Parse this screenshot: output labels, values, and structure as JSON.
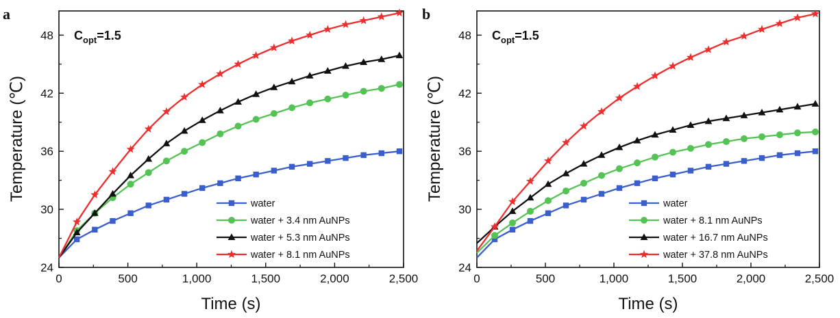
{
  "colors": {
    "water": "#3a5fcd",
    "small": "#55c255",
    "medium": "#111111",
    "large": "#ee2e2e",
    "axis": "#111111"
  },
  "chart_data": [
    {
      "type": "line",
      "panel_label": "a",
      "annotation": {
        "main": "C",
        "sub": "opt",
        "tail": "=1.5"
      },
      "xlabel": "Time (s)",
      "ylabel": "Temperature (℃)",
      "xlim": [
        0,
        2500
      ],
      "ylim": [
        24,
        50.5
      ],
      "xticks": [
        0,
        500,
        1000,
        1500,
        2000,
        2500
      ],
      "xtick_labels": [
        "0",
        "500",
        "1,000",
        "1,500",
        "2,000",
        "2,500"
      ],
      "yticks": [
        24,
        30,
        36,
        42,
        48
      ],
      "ytick_labels": [
        "24",
        "30",
        "36",
        "42",
        "48"
      ],
      "grid": false,
      "legend_position": "bottom-right",
      "x": [
        0,
        130,
        260,
        390,
        520,
        650,
        780,
        910,
        1040,
        1170,
        1300,
        1430,
        1560,
        1690,
        1820,
        1950,
        2080,
        2210,
        2340,
        2470
      ],
      "series": [
        {
          "name": "water",
          "marker": "square",
          "color_key": "water",
          "values": [
            25.0,
            26.9,
            27.9,
            28.8,
            29.6,
            30.4,
            31.0,
            31.6,
            32.2,
            32.7,
            33.2,
            33.6,
            34.0,
            34.4,
            34.7,
            35.0,
            35.3,
            35.6,
            35.8,
            36.0
          ]
        },
        {
          "name": "water + 3.4 nm AuNPs",
          "marker": "circle",
          "color_key": "small",
          "values": [
            25.0,
            27.8,
            29.6,
            31.2,
            32.6,
            33.8,
            35.0,
            36.0,
            36.9,
            37.8,
            38.6,
            39.3,
            39.9,
            40.5,
            41.0,
            41.4,
            41.8,
            42.2,
            42.5,
            42.9
          ]
        },
        {
          "name": "water + 5.3 nm AuNPs",
          "marker": "triangle",
          "color_key": "medium",
          "values": [
            25.0,
            27.6,
            29.6,
            31.6,
            33.5,
            35.2,
            36.8,
            38.1,
            39.2,
            40.2,
            41.1,
            41.9,
            42.6,
            43.2,
            43.8,
            44.3,
            44.8,
            45.2,
            45.5,
            45.9
          ]
        },
        {
          "name": "water + 8.1 nm AuNPs",
          "marker": "star",
          "color_key": "large",
          "values": [
            25.0,
            28.7,
            31.5,
            33.9,
            36.2,
            38.3,
            40.1,
            41.6,
            42.9,
            44.0,
            45.0,
            45.9,
            46.7,
            47.4,
            48.0,
            48.6,
            49.1,
            49.5,
            49.9,
            50.3
          ]
        }
      ]
    },
    {
      "type": "line",
      "panel_label": "b",
      "annotation": {
        "main": "C",
        "sub": "opt",
        "tail": "=1.5"
      },
      "xlabel": "Time (s)",
      "ylabel": "Temperature (℃)",
      "xlim": [
        0,
        2500
      ],
      "ylim": [
        24,
        50.5
      ],
      "xticks": [
        0,
        500,
        1000,
        1500,
        2000,
        2500
      ],
      "xtick_labels": [
        "0",
        "500",
        "1,000",
        "1,500",
        "2,000",
        "2,500"
      ],
      "yticks": [
        24,
        30,
        36,
        42,
        48
      ],
      "ytick_labels": [
        "24",
        "30",
        "36",
        "42",
        "48"
      ],
      "grid": false,
      "legend_position": "bottom-right",
      "x": [
        0,
        130,
        260,
        390,
        520,
        650,
        780,
        910,
        1040,
        1170,
        1300,
        1430,
        1560,
        1690,
        1820,
        1950,
        2080,
        2210,
        2340,
        2470
      ],
      "series": [
        {
          "name": "water",
          "marker": "square",
          "color_key": "water",
          "values": [
            25.0,
            26.9,
            27.9,
            28.8,
            29.6,
            30.4,
            31.0,
            31.6,
            32.2,
            32.7,
            33.2,
            33.6,
            34.0,
            34.4,
            34.7,
            35.0,
            35.3,
            35.6,
            35.8,
            36.0
          ]
        },
        {
          "name": "water + 8.1 nm AuNPs",
          "marker": "circle",
          "color_key": "small",
          "values": [
            25.5,
            27.3,
            28.6,
            29.8,
            30.9,
            31.9,
            32.7,
            33.5,
            34.2,
            34.8,
            35.4,
            35.9,
            36.3,
            36.7,
            37.0,
            37.3,
            37.5,
            37.7,
            37.9,
            38.0
          ]
        },
        {
          "name": "water + 16.7 nm AuNPs",
          "marker": "triangle",
          "color_key": "medium",
          "values": [
            26.5,
            28.2,
            29.8,
            31.2,
            32.6,
            33.7,
            34.7,
            35.6,
            36.4,
            37.1,
            37.7,
            38.2,
            38.7,
            39.1,
            39.4,
            39.7,
            40.0,
            40.3,
            40.6,
            40.9
          ]
        },
        {
          "name": "water + 37.8 nm AuNPs",
          "marker": "star",
          "color_key": "large",
          "values": [
            25.7,
            28.2,
            30.8,
            32.9,
            35.0,
            36.9,
            38.6,
            40.1,
            41.5,
            42.7,
            43.8,
            44.8,
            45.7,
            46.5,
            47.3,
            47.9,
            48.6,
            49.2,
            49.8,
            50.2
          ]
        }
      ]
    }
  ]
}
